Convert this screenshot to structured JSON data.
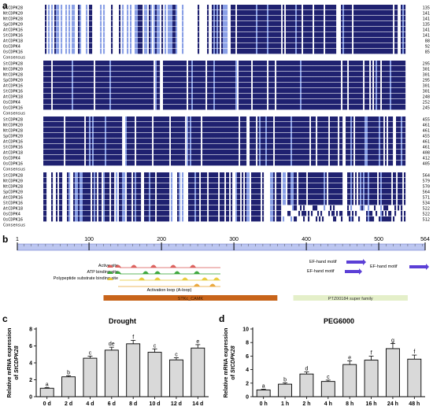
{
  "panels": {
    "a": "a",
    "b": "b",
    "c": "c",
    "d": "d"
  },
  "alignment": {
    "sequence_names": [
      "StCDPK28",
      "NtCDPK20",
      "NtCDPK28",
      "SpCDPK20",
      "AtCDPK16",
      "StCDPK16",
      "AtCDPK18",
      "OsCDPK4",
      "OsCDPK16"
    ],
    "consensus_label": "Consensus",
    "blocks": [
      {
        "ends": [
          135,
          141,
          141,
          135,
          141,
          141,
          88,
          92,
          85
        ]
      },
      {
        "ends": [
          295,
          301,
          301,
          295,
          301,
          301,
          248,
          252,
          245
        ]
      },
      {
        "ends": [
          455,
          461,
          461,
          455,
          461,
          461,
          408,
          412,
          405
        ]
      },
      {
        "ends": [
          564,
          579,
          570,
          564,
          571,
          534,
          522,
          522,
          512
        ]
      }
    ],
    "colors": {
      "identical": "#1f2170",
      "similar": "#8aa0e6"
    }
  },
  "domain_map": {
    "ticks": [
      1,
      100,
      200,
      300,
      400,
      500,
      564
    ],
    "length": 564,
    "features": [
      {
        "label": "Active site",
        "color": "#d9534f"
      },
      {
        "label": "ATP binding site",
        "color": "#2ca02c"
      },
      {
        "label": "Polypeptide substrate binding site",
        "color": "#e8c72c"
      },
      {
        "label": "Activation loop (A-loop)",
        "color": "#e8a02c"
      }
    ],
    "ef_hand_label": "EF-hand motif",
    "kinase_domain": {
      "label": "STKc_CAMK",
      "start": 120,
      "end": 360,
      "color": "#c8641a"
    },
    "super_family": {
      "label": "PTZ00184 super family",
      "start": 382,
      "end": 540,
      "color": "#e4efc9"
    }
  },
  "chart_data": [
    {
      "type": "bar",
      "title": "Drought",
      "ylabel_prefix": "Relative mRNA expression",
      "ylabel_prefix2": "of ",
      "ylabel_gene": "StCDPK28",
      "categories": [
        "0 d",
        "2 d",
        "4 d",
        "6 d",
        "8 d",
        "10 d",
        "12 d",
        "14 d"
      ],
      "values": [
        1.0,
        2.35,
        4.55,
        5.5,
        6.25,
        5.25,
        4.35,
        5.75
      ],
      "errors": [
        0.08,
        0.12,
        0.25,
        0.35,
        0.4,
        0.4,
        0.25,
        0.4
      ],
      "letters": [
        "a",
        "b",
        "c",
        "de",
        "f",
        "c",
        "c",
        "e"
      ],
      "ylim": [
        0,
        8
      ],
      "yticks": [
        0,
        2,
        4,
        6,
        8
      ]
    },
    {
      "type": "bar",
      "title": "PEG6000",
      "ylabel_prefix": "Relative mRNA expression",
      "ylabel_prefix2": "of ",
      "ylabel_gene": "StCDPK28",
      "categories": [
        "0 h",
        "1 h",
        "2 h",
        "4 h",
        "8 h",
        "16 h",
        "24 h",
        "48 h"
      ],
      "values": [
        1.0,
        1.85,
        3.35,
        2.25,
        4.75,
        5.4,
        7.1,
        5.55
      ],
      "errors": [
        0.1,
        0.2,
        0.3,
        0.2,
        0.55,
        0.6,
        0.75,
        0.6
      ],
      "letters": [
        "a",
        "b",
        "d",
        "c",
        "e",
        "f",
        "g",
        "f"
      ],
      "ylim": [
        0,
        10
      ],
      "yticks": [
        0,
        2,
        4,
        6,
        8,
        10
      ]
    }
  ]
}
